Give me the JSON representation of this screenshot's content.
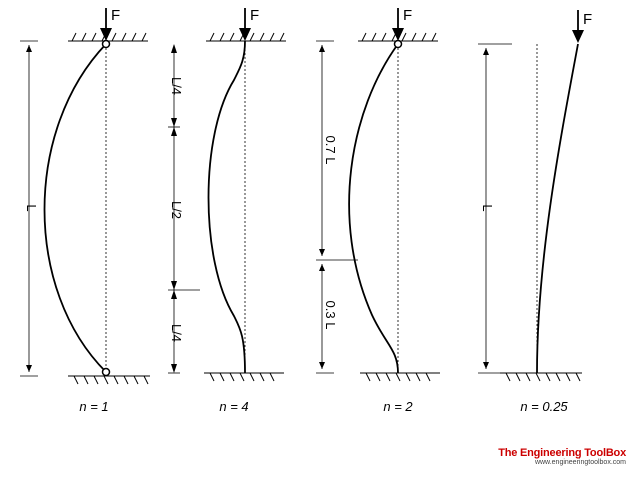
{
  "force_label": "F",
  "columns": [
    {
      "caption": "n = 1",
      "length_label": "L"
    },
    {
      "caption": "n = 4",
      "segment_labels": [
        "L/4",
        "L/2",
        "L/4"
      ]
    },
    {
      "caption": "n = 2",
      "segment_labels": [
        "0.7 L",
        "0.3 L"
      ]
    },
    {
      "caption": "n = 0.25",
      "length_label": "L"
    }
  ],
  "brand": {
    "title": "The Engineering ToolBox",
    "url": "www.engineeringtoolbox.com",
    "color": "#cc0000"
  }
}
